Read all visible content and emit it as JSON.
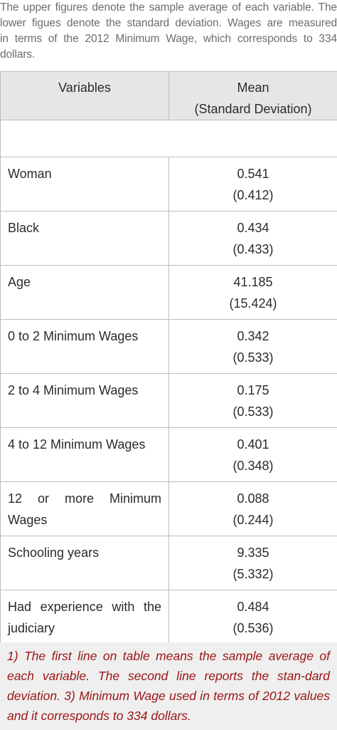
{
  "caption": {
    "lines": [
      "The upper figures denote the sample average of each variable. The",
      "lower figues denote the standard deviation. Wages are measured",
      "in terms of the 2012 Minimum Wage, which corresponds to 334",
      "dollars."
    ]
  },
  "table": {
    "headers": {
      "variables": "Variables",
      "mean_line1": "Mean",
      "mean_line2": "(Standard Deviation)"
    },
    "rows": [
      {
        "variable": "Woman",
        "mean": "0.541",
        "sd": "(0.412)"
      },
      {
        "variable": "Black",
        "mean": "0.434",
        "sd": "(0.433)"
      },
      {
        "variable": "Age",
        "mean": "41.185",
        "sd": "(15.424)"
      },
      {
        "variable": "0 to 2 Minimum Wages",
        "mean": "0.342",
        "sd": "(0.533)"
      },
      {
        "variable": "2 to 4 Minimum Wages",
        "mean": "0.175",
        "sd": "(0.533)"
      },
      {
        "variable": "4 to 12 Minimum Wages",
        "mean": "0.401",
        "sd": "(0.348)"
      },
      {
        "variable": "12 or more Minimum Wages",
        "mean": "0.088",
        "sd": "(0.244)"
      },
      {
        "variable": "Schooling years",
        "mean": "9.335",
        "sd": "(5.332)"
      },
      {
        "variable": "Had experience with the judiciary",
        "mean": "0.484",
        "sd": "(0.536)"
      }
    ]
  },
  "footnote": {
    "text": "1) The first line on table means the sample average of each variable. The second line reports the stan-dard deviation. 3) Minimum Wage used in terms of 2012 values and it corresponds to 334 dollars."
  },
  "colors": {
    "header_bg": "#e6e6e6",
    "border": "#bdbdbd",
    "caption_text": "#6d6d6d",
    "footnote_text": "#9c1414",
    "footnote_bg": "#efefef"
  }
}
